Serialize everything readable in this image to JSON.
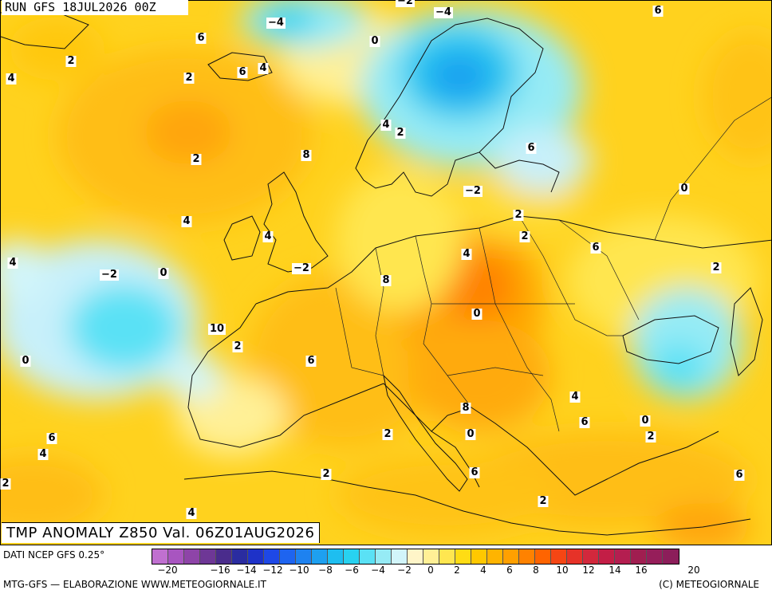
{
  "run_title": "RUN GFS 18JUL2026 00Z",
  "panel_title": "TMP ANOMALY Z850 Val. 06Z01AUG2026",
  "footer": {
    "source": "DATI NCEP GFS 0.25°",
    "credit": "MTG-GFS — ELABORAZIONE WWW.METEOGIORNALE.IT",
    "copyright": "(C) METEOGIORNALE"
  },
  "colorbar": {
    "colors": [
      "#c070d0",
      "#a855c0",
      "#8e44a8",
      "#6e3796",
      "#4a2c8c",
      "#2a2ca0",
      "#1e32c8",
      "#1e48e6",
      "#1e64f0",
      "#1e82f0",
      "#1ea0f0",
      "#1ebef0",
      "#28d2f0",
      "#5ae1f5",
      "#96ebf5",
      "#d2f5fa",
      "#fff5c8",
      "#fff096",
      "#ffe650",
      "#ffdc14",
      "#ffc800",
      "#ffb400",
      "#ffa000",
      "#ff8200",
      "#ff6400",
      "#f54614",
      "#e63228",
      "#d2283c",
      "#c31e46",
      "#b41e50",
      "#a01e50",
      "#961e5a",
      "#8c1e5a"
    ],
    "ticks": [
      "-20",
      "-18",
      "-16",
      "-14",
      "-12",
      "-10",
      "-8",
      "-6",
      "-4",
      "-2",
      "0",
      "2",
      "4",
      "6",
      "8",
      "10",
      "12",
      "14",
      "16",
      "18",
      "20"
    ],
    "tick_labels_shown": [
      "−20",
      "−16",
      "−14",
      "−12",
      "−10",
      "−8",
      "−6",
      "−4",
      "−2",
      "0",
      "2",
      "4",
      "6",
      "8",
      "10",
      "12",
      "14",
      "16",
      "20"
    ]
  },
  "contour_labels": [
    {
      "value": "−4",
      "id": "label-n4-a"
    },
    {
      "value": "−2",
      "id": "label-n2-a"
    },
    {
      "value": "−4",
      "id": "label-n4-b"
    },
    {
      "value": "6",
      "id": "label-6-a"
    },
    {
      "value": "0",
      "id": "label-0-a"
    },
    {
      "value": "6",
      "id": "label-6-b"
    },
    {
      "value": "2",
      "id": "label-2-a"
    },
    {
      "value": "4",
      "id": "label-4-a"
    },
    {
      "value": "4",
      "id": "label-4-b"
    },
    {
      "value": "6",
      "id": "label-6-c"
    },
    {
      "value": "2",
      "id": "label-2-b"
    },
    {
      "value": "4",
      "id": "label-4-c"
    },
    {
      "value": "2",
      "id": "label-2-c"
    },
    {
      "value": "2",
      "id": "label-2-d"
    },
    {
      "value": "8",
      "id": "label-8-a"
    },
    {
      "value": "6",
      "id": "label-6-d"
    },
    {
      "value": "−2",
      "id": "label-n2-b"
    },
    {
      "value": "0",
      "id": "label-0-b"
    },
    {
      "value": "2",
      "id": "label-2-e"
    },
    {
      "value": "4",
      "id": "label-4-d"
    },
    {
      "value": "2",
      "id": "label-2-f"
    },
    {
      "value": "4",
      "id": "label-4-e"
    },
    {
      "value": "6",
      "id": "label-6-e"
    },
    {
      "value": "4",
      "id": "label-4-f"
    },
    {
      "value": "−2",
      "id": "label-n2-c"
    },
    {
      "value": "0",
      "id": "label-0-c"
    },
    {
      "value": "−2",
      "id": "label-n2-d"
    },
    {
      "value": "4",
      "id": "label-4-g"
    },
    {
      "value": "8",
      "id": "label-8-b"
    },
    {
      "value": "2",
      "id": "label-2-g"
    },
    {
      "value": "0",
      "id": "label-0-d"
    },
    {
      "value": "10",
      "id": "label-10"
    },
    {
      "value": "2",
      "id": "label-2-h"
    },
    {
      "value": "0",
      "id": "label-0-e"
    },
    {
      "value": "0",
      "id": "label-0-f"
    },
    {
      "value": "6",
      "id": "label-6-f"
    },
    {
      "value": "4",
      "id": "label-4-h"
    },
    {
      "value": "8",
      "id": "label-8-c"
    },
    {
      "value": "6",
      "id": "label-6-g"
    },
    {
      "value": "0",
      "id": "label-0-g"
    },
    {
      "value": "2",
      "id": "label-2-i"
    },
    {
      "value": "6",
      "id": "label-6-h"
    },
    {
      "value": "2",
      "id": "label-2-j"
    },
    {
      "value": "4",
      "id": "label-4-i"
    },
    {
      "value": "6",
      "id": "label-6-i"
    },
    {
      "value": "2",
      "id": "label-2-k"
    },
    {
      "value": "4",
      "id": "label-4-j"
    },
    {
      "value": "2",
      "id": "label-2-l"
    },
    {
      "value": "6",
      "id": "label-6-j"
    },
    {
      "value": "2",
      "id": "label-2-m"
    }
  ]
}
